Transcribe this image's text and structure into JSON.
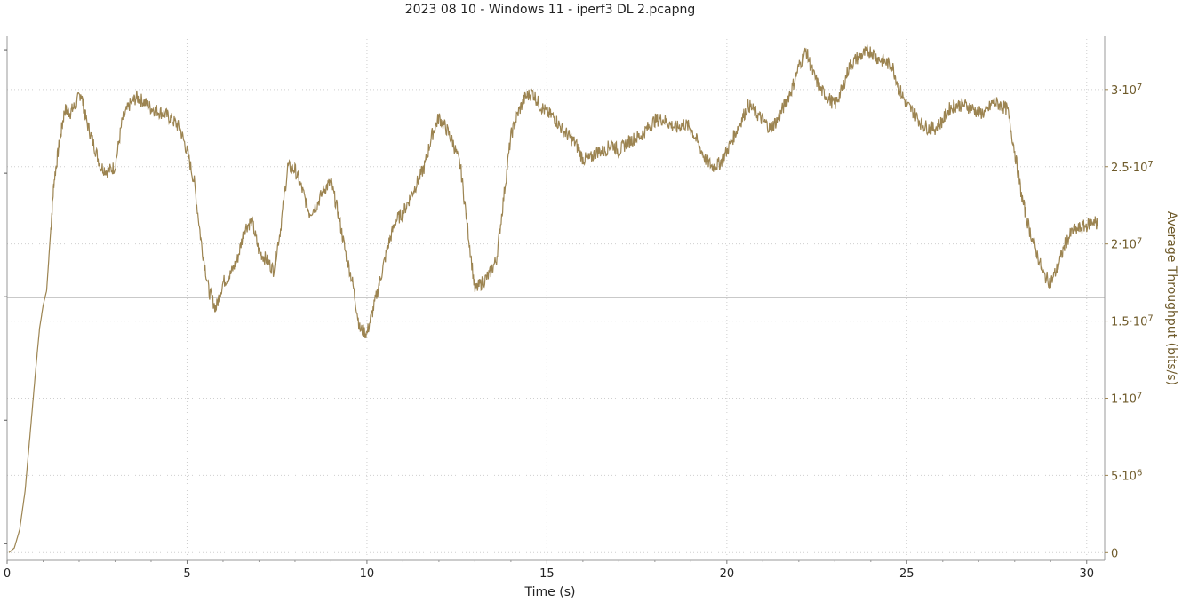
{
  "chart_data": {
    "type": "line",
    "title": "2023 08 10 - Windows 11 - iperf3 DL 2.pcapng",
    "xlabel": "Time (s)",
    "ylabel": "Average Throughput (bits/s)",
    "xlim": [
      0,
      30.5
    ],
    "ylim": [
      -500000,
      33500000
    ],
    "grid": true,
    "y_axis_side": "right",
    "x_ticks": [
      "0",
      "5",
      "10",
      "15",
      "20",
      "25",
      "30"
    ],
    "x_tick_values": [
      0,
      5,
      10,
      15,
      20,
      25,
      30
    ],
    "y_ticks": [
      {
        "value": 0,
        "base": "0",
        "exp": ""
      },
      {
        "value": 5000000,
        "base": "5·10",
        "exp": "6"
      },
      {
        "value": 10000000,
        "base": "1·10",
        "exp": "7"
      },
      {
        "value": 15000000,
        "base": "1.5·10",
        "exp": "7"
      },
      {
        "value": 20000000,
        "base": "2·10",
        "exp": "7"
      },
      {
        "value": 25000000,
        "base": "2.5·10",
        "exp": "7"
      },
      {
        "value": 30000000,
        "base": "3·10",
        "exp": "7"
      }
    ],
    "reference_line_y": 16500000,
    "series": [
      {
        "color": "#9c8451",
        "x": [
          0.05,
          0.2,
          0.35,
          0.5,
          0.65,
          0.8,
          0.9,
          1.0,
          1.1,
          1.2,
          1.3,
          1.45,
          1.6,
          1.75,
          1.9,
          2.05,
          2.2,
          2.4,
          2.6,
          2.8,
          3.0,
          3.2,
          3.4,
          3.6,
          3.8,
          4.0,
          4.2,
          4.4,
          4.6,
          4.8,
          5.0,
          5.2,
          5.4,
          5.6,
          5.8,
          6.0,
          6.2,
          6.4,
          6.6,
          6.8,
          7.0,
          7.2,
          7.4,
          7.6,
          7.8,
          8.0,
          8.2,
          8.4,
          8.6,
          8.8,
          9.0,
          9.2,
          9.4,
          9.6,
          9.8,
          10.0,
          10.2,
          10.4,
          10.6,
          10.8,
          11.0,
          11.2,
          11.4,
          11.6,
          11.8,
          12.0,
          12.2,
          12.4,
          12.6,
          12.8,
          13.0,
          13.2,
          13.4,
          13.6,
          13.8,
          14.0,
          14.2,
          14.4,
          14.6,
          14.8,
          15.0,
          15.2,
          15.4,
          15.6,
          15.8,
          16.0,
          16.2,
          16.4,
          16.6,
          16.8,
          17.0,
          17.2,
          17.4,
          17.6,
          17.8,
          18.0,
          18.2,
          18.4,
          18.6,
          18.8,
          19.0,
          19.2,
          19.4,
          19.6,
          19.8,
          20.0,
          20.2,
          20.4,
          20.6,
          20.8,
          21.0,
          21.2,
          21.4,
          21.6,
          21.8,
          22.0,
          22.2,
          22.4,
          22.6,
          22.8,
          23.0,
          23.2,
          23.4,
          23.6,
          23.8,
          24.0,
          24.2,
          24.4,
          24.6,
          24.8,
          25.0,
          25.2,
          25.4,
          25.6,
          25.8,
          26.0,
          26.2,
          26.4,
          26.6,
          26.8,
          27.0,
          27.2,
          27.4,
          27.6,
          27.8,
          28.0,
          28.2,
          28.4,
          28.6,
          28.8,
          29.0,
          29.2,
          29.4,
          29.6,
          29.8,
          30.0,
          30.2,
          30.3
        ],
        "y": [
          0,
          300000,
          1500000,
          4000000,
          8000000,
          12000000,
          14500000,
          16000000,
          17000000,
          20500000,
          24000000,
          26500000,
          28700000,
          28500000,
          29000000,
          29800000,
          28000000,
          26500000,
          25000000,
          24700000,
          25000000,
          28000000,
          29000000,
          29500000,
          29200000,
          28800000,
          28600000,
          28400000,
          28000000,
          27500000,
          26000000,
          24000000,
          20000000,
          17000000,
          15800000,
          17500000,
          18000000,
          19000000,
          21000000,
          21500000,
          19500000,
          19000000,
          18300000,
          21000000,
          25000000,
          24800000,
          23500000,
          22000000,
          22500000,
          23500000,
          24000000,
          22000000,
          19500000,
          17500000,
          14500000,
          14200000,
          16000000,
          18000000,
          20000000,
          21500000,
          22000000,
          23000000,
          24000000,
          25000000,
          27000000,
          28200000,
          27500000,
          26500000,
          25000000,
          21000000,
          17000000,
          17500000,
          18000000,
          19000000,
          23000000,
          27000000,
          28500000,
          29500000,
          29800000,
          29000000,
          28500000,
          28200000,
          27500000,
          27000000,
          26500000,
          25500000,
          25500000,
          26000000,
          26000000,
          26500000,
          26000000,
          26500000,
          26800000,
          27000000,
          27500000,
          28000000,
          28100000,
          27800000,
          27500000,
          27800000,
          27500000,
          26500000,
          25500000,
          25000000,
          25200000,
          26000000,
          27000000,
          28000000,
          29000000,
          28500000,
          28000000,
          27500000,
          28000000,
          29000000,
          30000000,
          31500000,
          32500000,
          31000000,
          30000000,
          29500000,
          29000000,
          30000000,
          31500000,
          32000000,
          32300000,
          32500000,
          32000000,
          31800000,
          31500000,
          30000000,
          29000000,
          28500000,
          27800000,
          27500000,
          27500000,
          28000000,
          28800000,
          29000000,
          29000000,
          28800000,
          28500000,
          28500000,
          29200000,
          29000000,
          28700000,
          26000000,
          23000000,
          21000000,
          19500000,
          18000000,
          17500000,
          18500000,
          20000000,
          20800000,
          21000000,
          21200000,
          21500000,
          21300000
        ]
      }
    ]
  }
}
